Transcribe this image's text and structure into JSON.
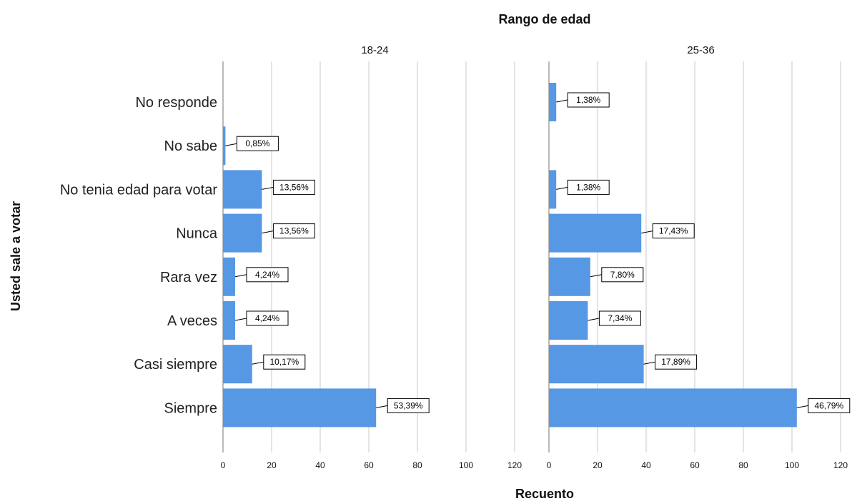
{
  "chart_data": {
    "type": "bar",
    "orientation": "horizontal",
    "title": "Rango de edad",
    "xlabel": "Recuento",
    "ylabel": "Usted sale a votar",
    "categories": [
      "No responde",
      "No sabe",
      "No tenia edad para votar",
      "Nunca",
      "Rara vez",
      "A veces",
      "Casi siempre",
      "Siempre"
    ],
    "xlim": [
      0,
      125
    ],
    "xticks": [
      "0",
      "20",
      "40",
      "60",
      "80",
      "100",
      "120"
    ],
    "grid": true,
    "panels": [
      {
        "name": "18-24",
        "values": [
          0,
          1,
          16,
          16,
          5,
          5,
          12,
          63
        ],
        "labels": [
          "",
          "0,85%",
          "13,56%",
          "13,56%",
          "4,24%",
          "4,24%",
          "10,17%",
          "53,39%"
        ]
      },
      {
        "name": "25-36",
        "values": [
          3,
          0,
          3,
          38,
          17,
          16,
          39,
          102
        ],
        "labels": [
          "1,38%",
          "",
          "1,38%",
          "17,43%",
          "7,80%",
          "7,34%",
          "17,89%",
          "46,79%"
        ]
      }
    ],
    "colors": {
      "bar": "#5698e4",
      "grid": "#c8c8c8"
    }
  }
}
